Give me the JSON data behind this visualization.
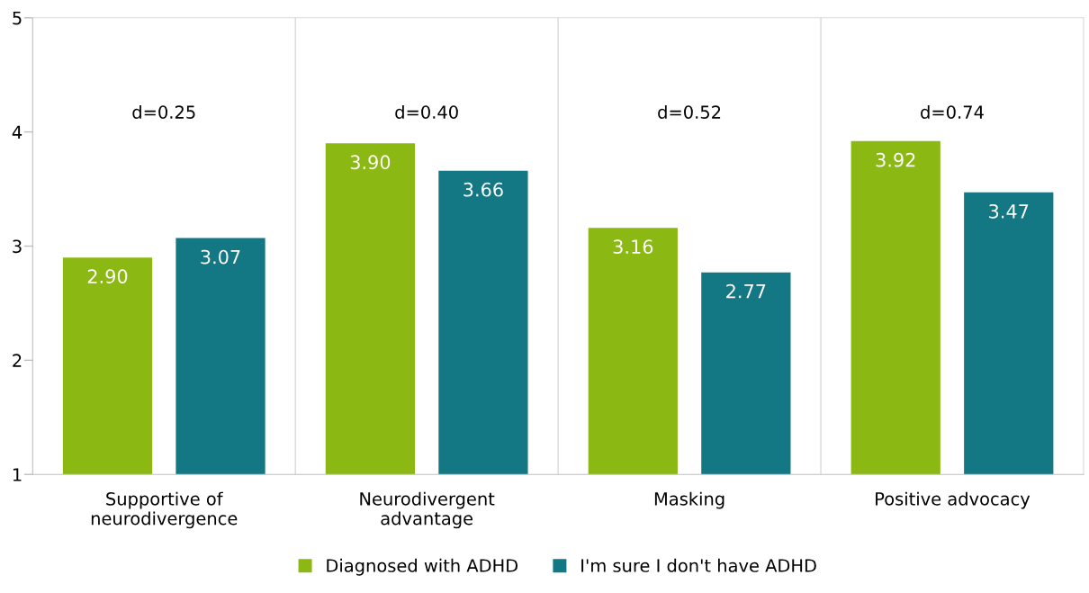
{
  "chart_data": {
    "type": "bar",
    "categories": [
      "Supportive of\nneurodivergence",
      "Neurodivergent\nadvantage",
      "Masking",
      "Positive advocacy"
    ],
    "series": [
      {
        "name": "Diagnosed with ADHD",
        "color": "#8cb814",
        "values": [
          2.9,
          3.9,
          3.16,
          3.92
        ],
        "value_labels": [
          "2.90",
          "3.90",
          "3.16",
          "3.92"
        ]
      },
      {
        "name": "I'm sure I don't have ADHD",
        "color": "#137884",
        "values": [
          3.07,
          3.66,
          2.77,
          3.47
        ],
        "value_labels": [
          "3.07",
          "3.66",
          "2.77",
          "3.47"
        ]
      }
    ],
    "ylim": [
      1,
      5
    ],
    "yticks": [
      1,
      2,
      3,
      4,
      5
    ],
    "grid": "x",
    "legend": "bottom",
    "annotations": [
      "d=0.25",
      "d=0.40",
      "d=0.52",
      "d=0.74"
    ]
  }
}
